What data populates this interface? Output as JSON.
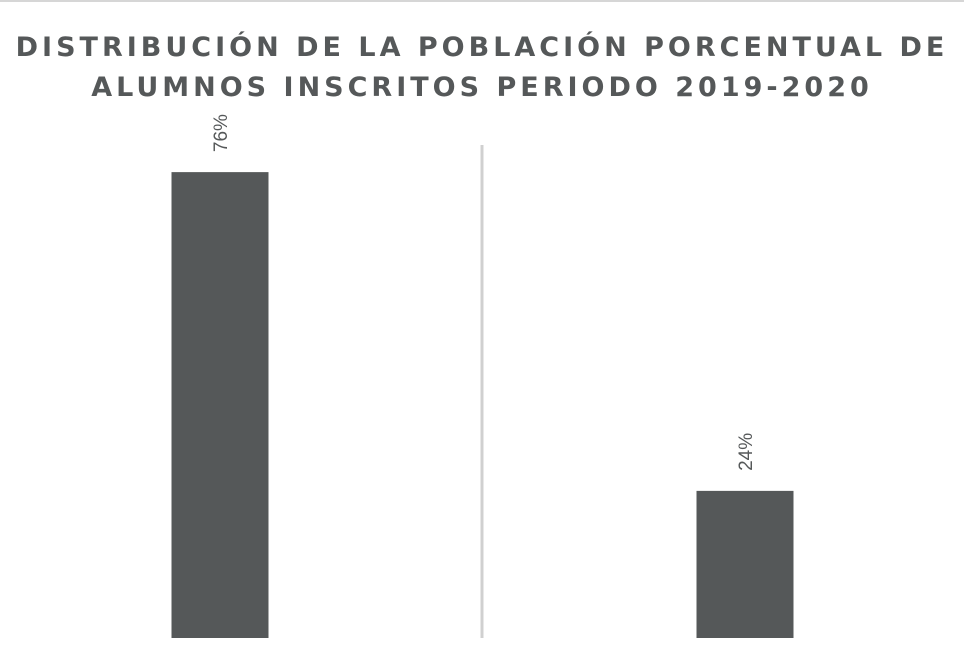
{
  "chart_data": {
    "type": "bar",
    "title_lines": [
      "DISTRIBUCIÓN DE LA POBLACIÓN PORCENTUAL DE",
      "ALUMNOS INSCRITOS PERIODO 2019-2020"
    ],
    "categories": [
      "",
      ""
    ],
    "values": [
      76,
      24
    ],
    "value_labels": [
      "76%",
      "24%"
    ],
    "unit": "%",
    "ylim": [
      0,
      100
    ],
    "xlabel": "",
    "ylabel": "",
    "grid": false,
    "legend": "none",
    "colors": {
      "bar": "#555859",
      "divider": "#d0d0d0",
      "label": "#555859"
    }
  }
}
